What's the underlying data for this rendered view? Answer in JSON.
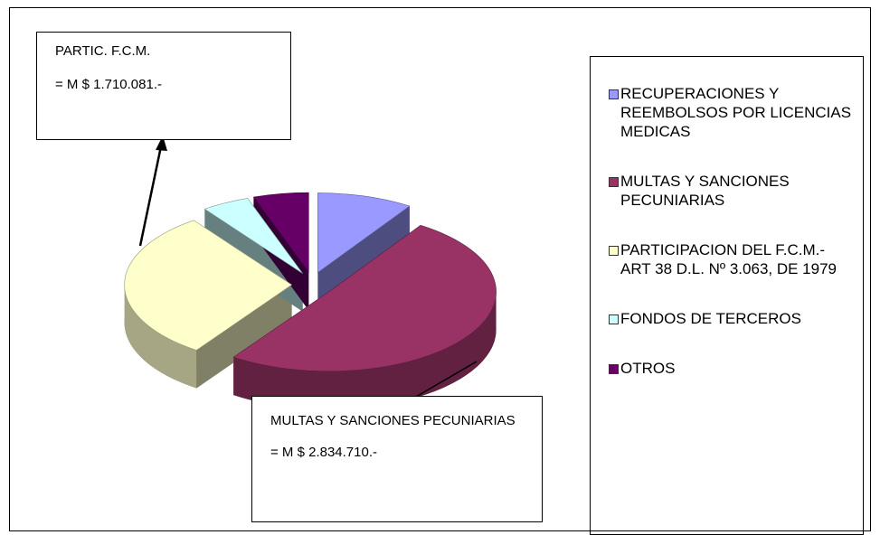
{
  "chart_data": {
    "type": "pie",
    "three_d": true,
    "categories": [
      "RECUPERACIONES Y REEMBOLSOS POR LICENCIAS MEDICAS",
      "MULTAS Y SANCIONES PECUNIARIAS",
      "PARTICIPACION DEL F.C.M.-ART 38 D.L. Nº 3.063, DE 1979",
      "FONDOS DE TERCEROS",
      "OTROS"
    ],
    "values": [
      520000,
      2834710,
      1710081,
      260000,
      300000
    ],
    "colors": [
      "#9999ff",
      "#993366",
      "#ffffcc",
      "#ccffff",
      "#660066"
    ],
    "legend": "right",
    "annotations": [
      {
        "title": "PARTIC. F.C.M.",
        "text": "= M $ 1.710.081.-"
      },
      {
        "title": "MULTAS Y SANCIONES PECUNIARIAS",
        "text": "= M $ 2.834.710.-"
      }
    ]
  }
}
